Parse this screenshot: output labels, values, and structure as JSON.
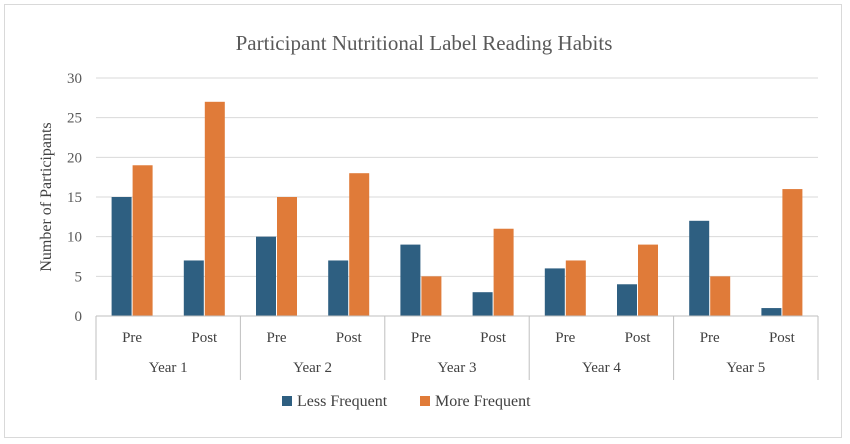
{
  "chart_data": {
    "type": "bar",
    "title": "Participant Nutritional Label Reading Habits",
    "ylabel": "Number of Participants",
    "xlabel": "",
    "ylim": [
      0,
      30
    ],
    "yticks": [
      0,
      5,
      10,
      15,
      20,
      25,
      30
    ],
    "groups": [
      "Year 1",
      "Year 2",
      "Year 3",
      "Year 4",
      "Year 5"
    ],
    "subcategories": [
      "Pre",
      "Post",
      "Pre",
      "Post",
      "Pre",
      "Post",
      "Pre",
      "Post",
      "Pre",
      "Post"
    ],
    "series": [
      {
        "name": "Less Frequent",
        "color": "#2e5f81",
        "values": [
          15,
          7,
          10,
          7,
          9,
          3,
          6,
          4,
          12,
          1
        ]
      },
      {
        "name": "More Frequent",
        "color": "#e07b39",
        "values": [
          19,
          27,
          15,
          18,
          5,
          11,
          7,
          9,
          5,
          16
        ]
      }
    ],
    "grid": true,
    "legend_position": "bottom"
  }
}
